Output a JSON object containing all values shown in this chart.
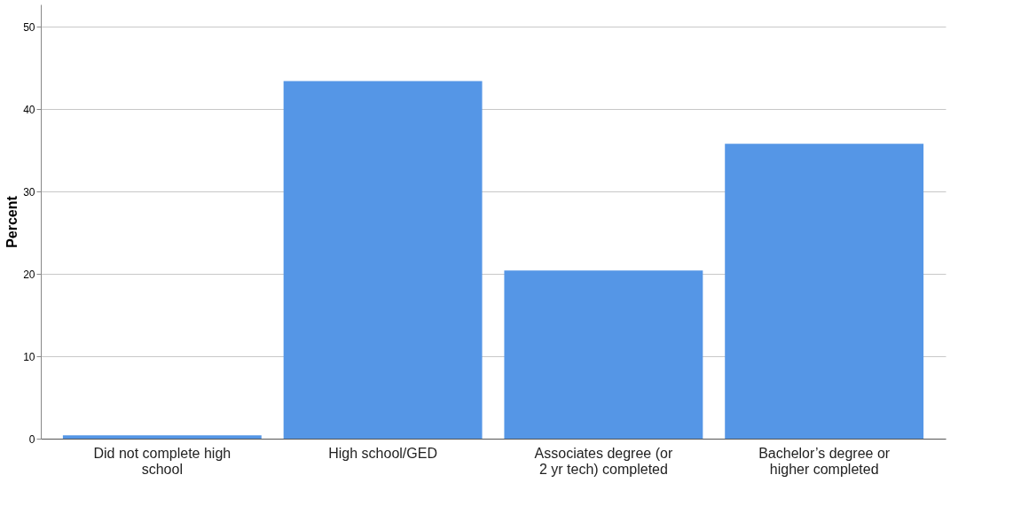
{
  "chart_data": {
    "type": "bar",
    "ylabel": "Percent",
    "categories": [
      "Did not complete high school",
      "High school/GED",
      "Associates degree (or 2 yr tech) completed",
      "Bachelor’s degree or higher completed"
    ],
    "values": [
      0.4,
      43.4,
      20.4,
      35.8
    ],
    "color": "#5596e6",
    "ylim": [
      0,
      52.7
    ],
    "yticks": [
      0,
      10,
      20,
      30,
      40,
      50
    ],
    "grid": "y"
  }
}
